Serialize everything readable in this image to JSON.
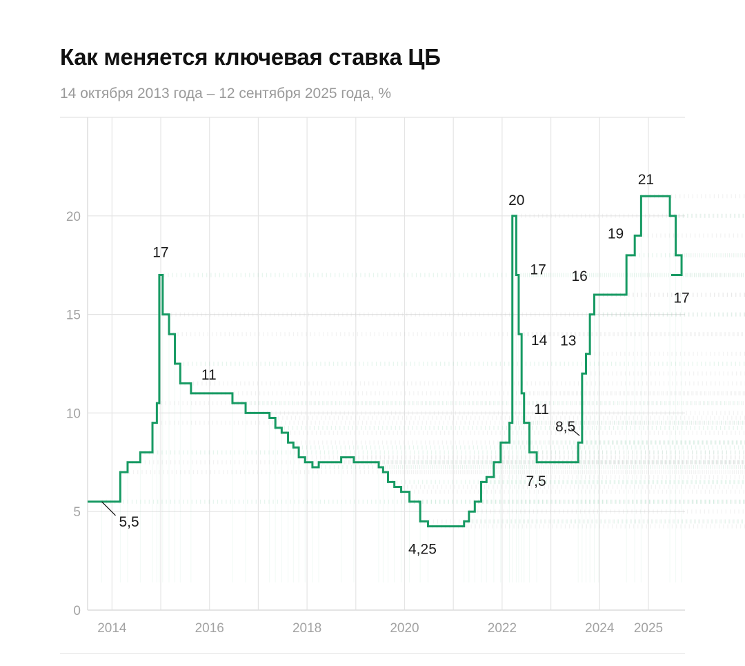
{
  "chart_data": {
    "type": "line",
    "step": true,
    "title": "Как меняется ключевая ставка ЦБ",
    "subtitle": "14 октября 2013 года – 12 сентября 2025 года, %",
    "xlabel": "",
    "ylabel": "",
    "xlim": [
      2013.5,
      2025.75
    ],
    "ylim": [
      0,
      25
    ],
    "x_ticks": [
      {
        "value": 2014,
        "label": "2014"
      },
      {
        "value": 2016,
        "label": "2016"
      },
      {
        "value": 2018,
        "label": "2018"
      },
      {
        "value": 2020,
        "label": "2020"
      },
      {
        "value": 2022,
        "label": "2022"
      },
      {
        "value": 2024,
        "label": "2024"
      },
      {
        "value": 2025,
        "label": "2025"
      }
    ],
    "y_ticks": [
      {
        "value": 0,
        "label": "0"
      },
      {
        "value": 5,
        "label": "5"
      },
      {
        "value": 10,
        "label": "10"
      },
      {
        "value": 15,
        "label": "15"
      },
      {
        "value": 20,
        "label": "20"
      }
    ],
    "colors": {
      "line": "#179a63",
      "grid": "#e4e4e4",
      "ghost": "#c9c9c9",
      "ghost_green": "#8fd3b2"
    },
    "series": [
      {
        "name": "Ключевая ставка ЦБ",
        "x": [
          2013.79,
          2014.17,
          2014.32,
          2014.58,
          2014.83,
          2014.92,
          2014.97,
          2015.04,
          2015.17,
          2015.29,
          2015.4,
          2015.62,
          2016.47,
          2016.74,
          2017.23,
          2017.35,
          2017.48,
          2017.61,
          2017.72,
          2017.83,
          2017.96,
          2018.11,
          2018.24,
          2018.7,
          2018.96,
          2019.47,
          2019.56,
          2019.66,
          2019.79,
          2019.93,
          2020.1,
          2020.32,
          2020.48,
          2021.22,
          2021.32,
          2021.44,
          2021.57,
          2021.68,
          2021.83,
          2021.97,
          2022.15,
          2022.21,
          2022.29,
          2022.34,
          2022.4,
          2022.45,
          2022.56,
          2022.71,
          2023.56,
          2023.64,
          2023.72,
          2023.8,
          2023.89,
          2023.98,
          2024.55,
          2024.72,
          2024.85,
          2025.44,
          2025.56,
          2025.68
        ],
        "values": [
          5.5,
          7,
          7.5,
          8,
          9.5,
          10.5,
          17,
          15,
          14,
          12.5,
          11.5,
          11,
          10.5,
          10,
          9.75,
          9.25,
          9,
          8.5,
          8.25,
          7.75,
          7.5,
          7.25,
          7.5,
          7.75,
          7.5,
          7.25,
          7,
          6.5,
          6.25,
          6,
          5.5,
          4.5,
          4.25,
          4.5,
          5,
          5.5,
          6.5,
          6.75,
          7.5,
          8.5,
          9.5,
          20,
          17,
          14,
          11,
          9.5,
          8,
          7.5,
          8.5,
          12,
          13,
          15,
          16,
          16,
          18,
          19,
          21,
          20,
          18,
          17
        ]
      }
    ],
    "annotations": [
      {
        "text": "5,5",
        "x": 2013.79,
        "y": 5.5
      },
      {
        "text": "17",
        "x": 2014.97,
        "y": 17
      },
      {
        "text": "11",
        "x": 2015.62,
        "y": 11
      },
      {
        "text": "4,25",
        "x": 2020.48,
        "y": 4.25
      },
      {
        "text": "20",
        "x": 2022.21,
        "y": 20
      },
      {
        "text": "17",
        "x": 2022.29,
        "y": 17
      },
      {
        "text": "14",
        "x": 2022.34,
        "y": 14
      },
      {
        "text": "11",
        "x": 2022.4,
        "y": 11
      },
      {
        "text": "7,5",
        "x": 2022.71,
        "y": 7.5
      },
      {
        "text": "8,5",
        "x": 2023.56,
        "y": 8.5
      },
      {
        "text": "13",
        "x": 2023.72,
        "y": 13
      },
      {
        "text": "16",
        "x": 2023.98,
        "y": 16
      },
      {
        "text": "19",
        "x": 2024.72,
        "y": 19
      },
      {
        "text": "21",
        "x": 2024.85,
        "y": 21
      },
      {
        "text": "17",
        "x": 2025.68,
        "y": 17
      }
    ]
  }
}
